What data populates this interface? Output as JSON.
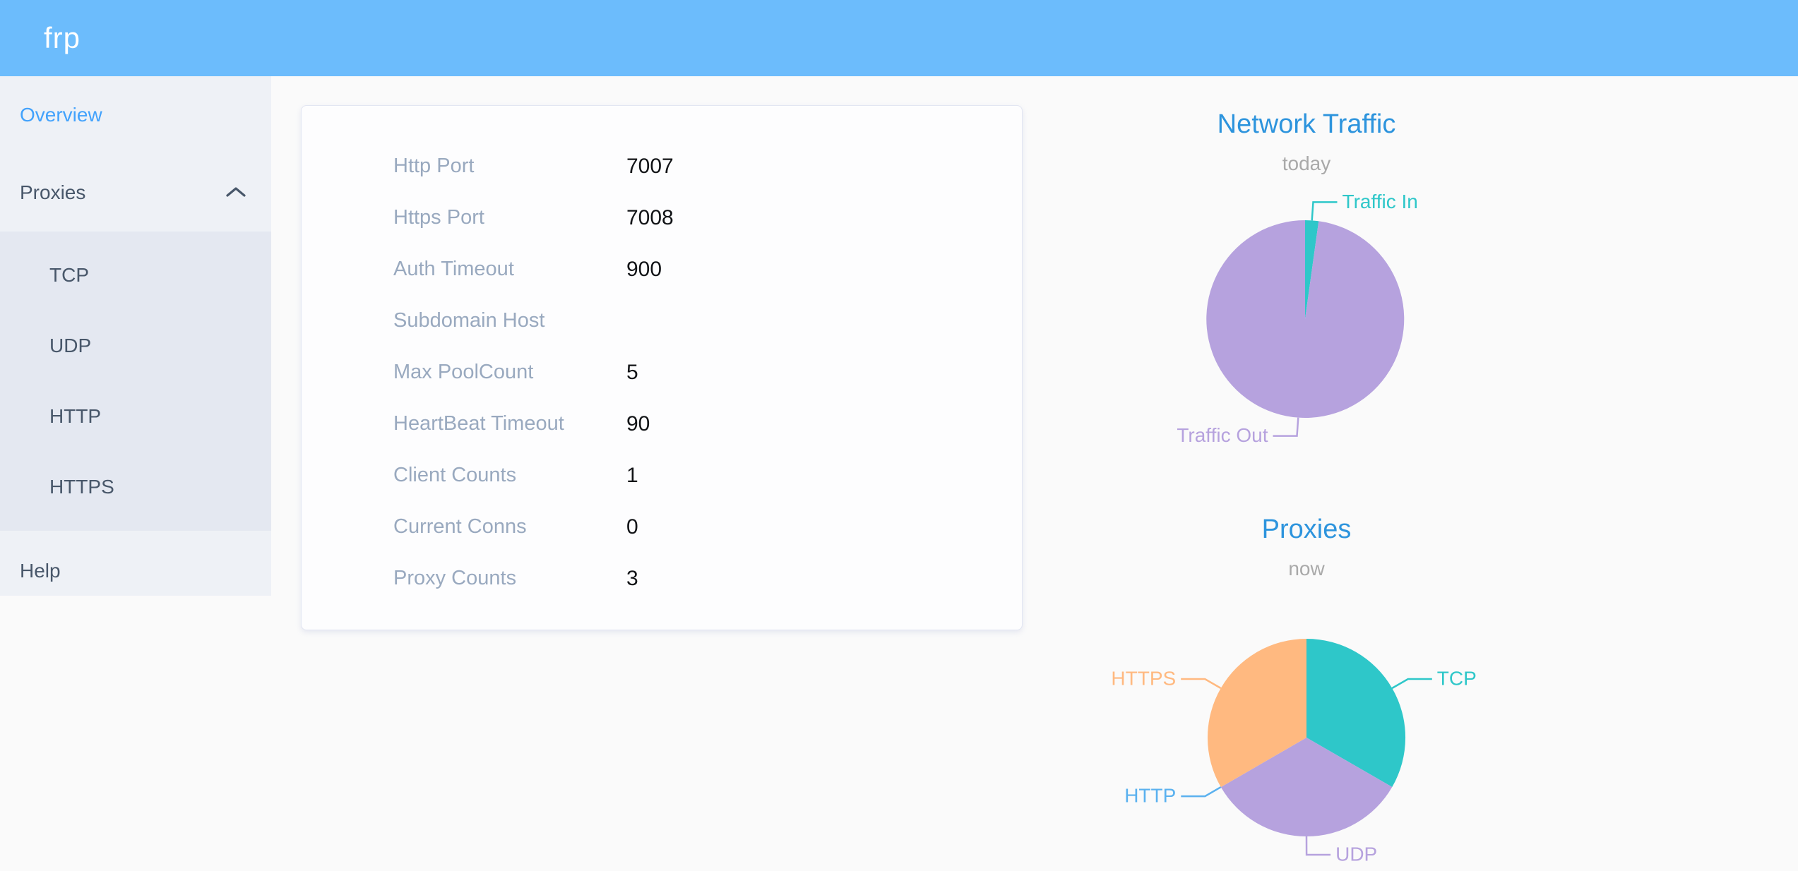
{
  "header": {
    "logo": "frp"
  },
  "sidebar": {
    "items": [
      {
        "label": "Overview",
        "active": true
      },
      {
        "label": "Proxies",
        "expanded": true
      },
      {
        "label": "TCP"
      },
      {
        "label": "UDP"
      },
      {
        "label": "HTTP"
      },
      {
        "label": "HTTPS"
      },
      {
        "label": "Help"
      }
    ]
  },
  "overview": {
    "rows": [
      {
        "label": "Http Port",
        "value": "7007"
      },
      {
        "label": "Https Port",
        "value": "7008"
      },
      {
        "label": "Auth Timeout",
        "value": "900"
      },
      {
        "label": "Subdomain Host",
        "value": ""
      },
      {
        "label": "Max PoolCount",
        "value": "5"
      },
      {
        "label": "HeartBeat Timeout",
        "value": "90"
      },
      {
        "label": "Client Counts",
        "value": "1"
      },
      {
        "label": "Current Conns",
        "value": "0"
      },
      {
        "label": "Proxy Counts",
        "value": "3"
      }
    ]
  },
  "chart_data": [
    {
      "type": "pie",
      "title": "Network Traffic",
      "subtitle": "today",
      "legend_position": "none",
      "labels": "outside-with-leader-lines",
      "slices": [
        {
          "label": "Traffic In",
          "pct": 2.2,
          "color": "#2ec7c9"
        },
        {
          "label": "Traffic Out",
          "pct": 97.8,
          "color": "#b6a2de"
        }
      ]
    },
    {
      "type": "pie",
      "title": "Proxies",
      "subtitle": "now",
      "legend_position": "none",
      "labels": "outside-with-leader-lines",
      "slices": [
        {
          "label": "TCP",
          "pct": 33.33,
          "color": "#2ec7c9"
        },
        {
          "label": "UDP",
          "pct": 33.33,
          "color": "#b6a2de"
        },
        {
          "label": "HTTP",
          "pct": 0,
          "color": "#5ab1ef"
        },
        {
          "label": "HTTPS",
          "pct": 33.34,
          "color": "#ffb980"
        }
      ]
    }
  ],
  "colors": {
    "header": "#6cbcfc",
    "sidebar_bg": "#eef1f6",
    "submenu_bg": "#e4e8f1",
    "menu_text": "#48576a",
    "menu_active": "#42a2fc",
    "card_label": "#99a9bf",
    "chart_title": "#2d94dd"
  }
}
